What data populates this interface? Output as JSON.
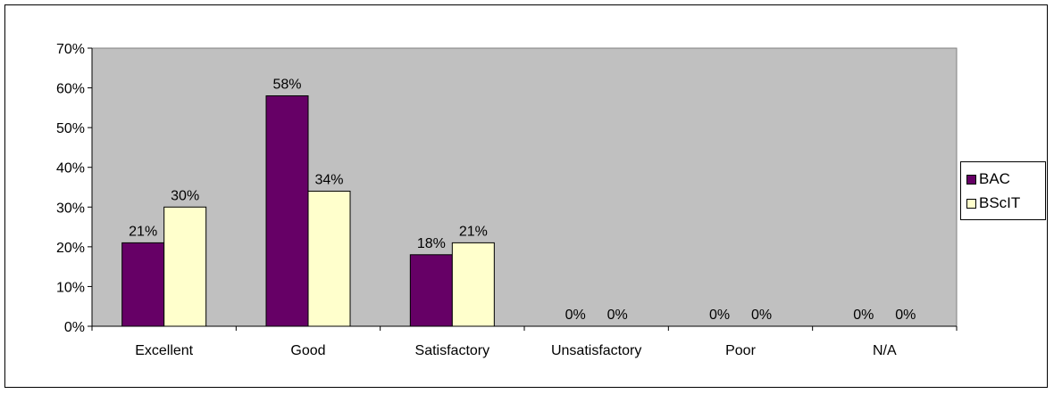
{
  "chart_data": {
    "type": "bar",
    "categories": [
      "Excellent",
      "Good",
      "Satisfactory",
      "Unsatisfactory",
      "Poor",
      "N/A"
    ],
    "series": [
      {
        "name": "BAC",
        "values": [
          21,
          58,
          18,
          0,
          0,
          0
        ],
        "labels": [
          "21%",
          "58%",
          "18%",
          "0%",
          "0%",
          "0%"
        ],
        "color": "#660066"
      },
      {
        "name": "BScIT",
        "values": [
          30,
          34,
          21,
          0,
          0,
          0
        ],
        "labels": [
          "30%",
          "34%",
          "21%",
          "0%",
          "0%",
          "0%"
        ],
        "color": "#ffffcc"
      }
    ],
    "ylim": [
      0,
      70
    ],
    "yticks": [
      "0%",
      "10%",
      "20%",
      "30%",
      "40%",
      "50%",
      "60%",
      "70%"
    ],
    "plot_background": "#c0c0c0",
    "grid": false,
    "legend_position": "right"
  }
}
